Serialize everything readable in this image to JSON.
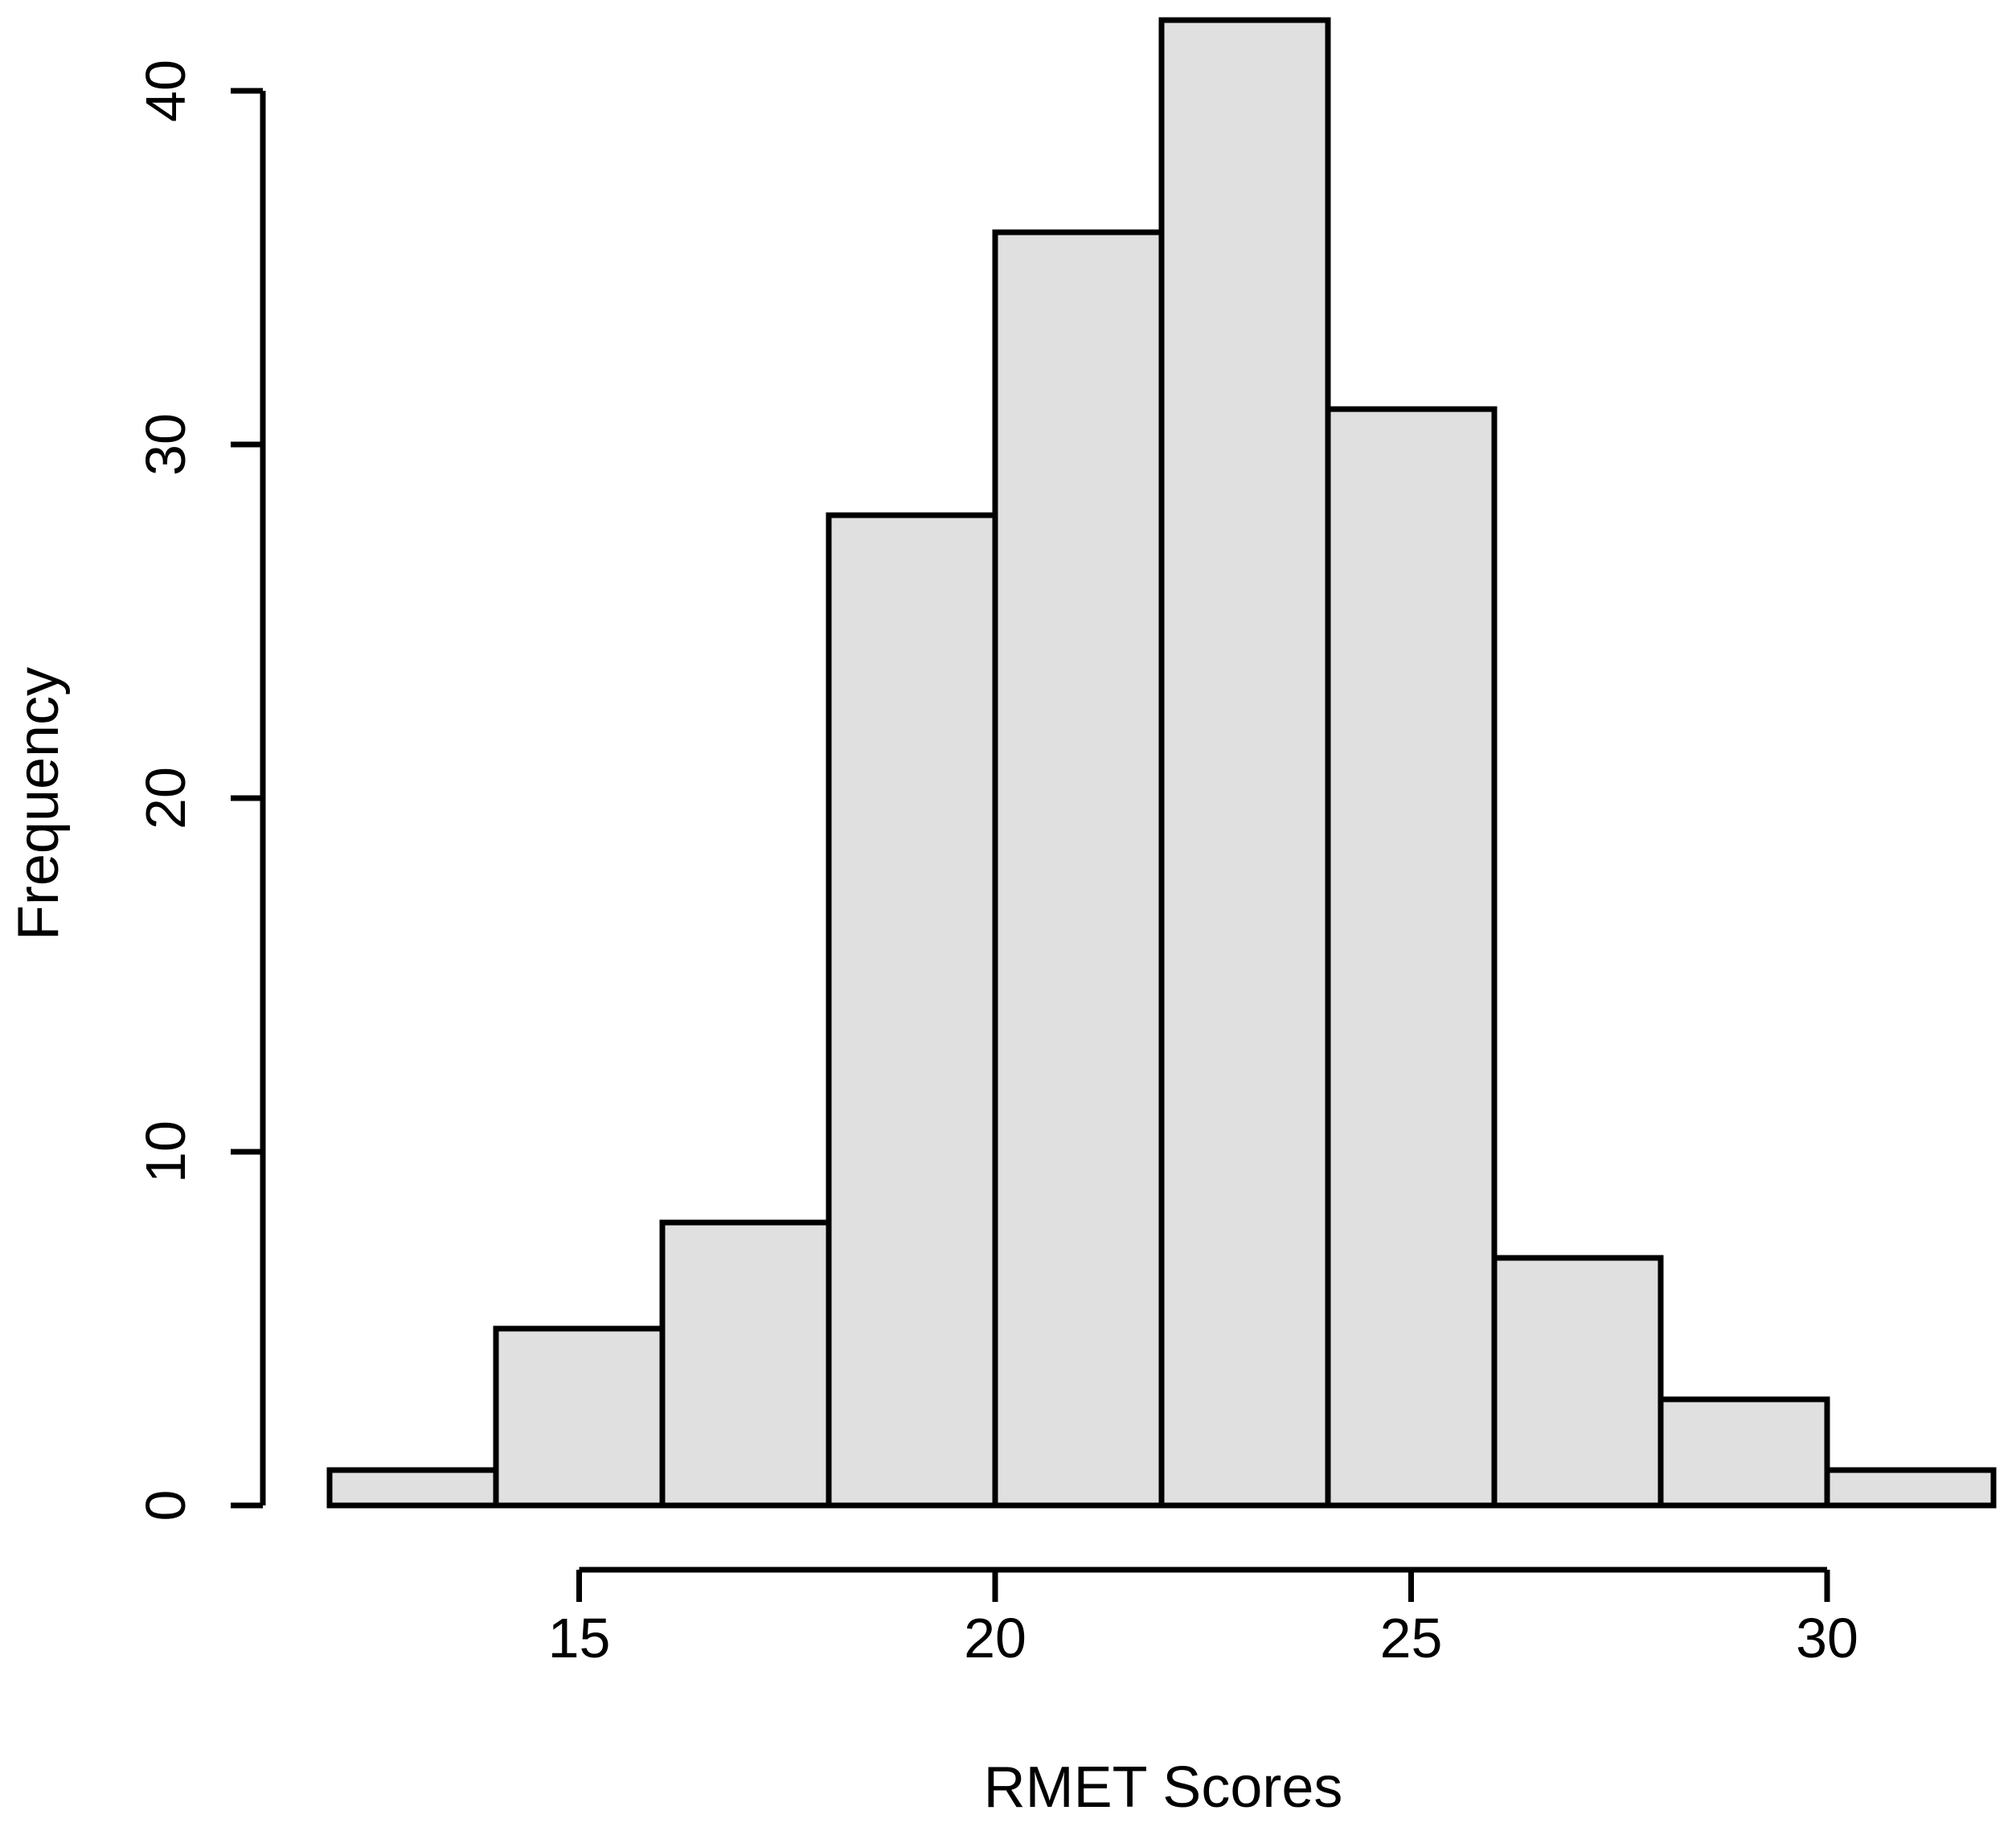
{
  "figure": {
    "background": "#ffffff"
  },
  "chart_data": {
    "type": "bar",
    "subtype": "histogram",
    "title": "",
    "xlabel": "RMET Scores",
    "ylabel": "Frequency",
    "bin_edges": [
      12,
      14,
      16,
      18,
      20,
      22,
      24,
      26,
      28,
      30,
      32
    ],
    "counts": [
      1,
      5,
      8,
      28,
      36,
      42,
      31,
      7,
      3,
      1
    ],
    "categories": [
      "12-14",
      "14-16",
      "16-18",
      "18-20",
      "20-22",
      "22-24",
      "24-26",
      "26-28",
      "28-30",
      "30-32"
    ],
    "x_ticks": [
      15,
      20,
      25,
      30
    ],
    "y_ticks": [
      0,
      10,
      20,
      30,
      40
    ],
    "xlim": [
      12,
      32
    ],
    "ylim": [
      0,
      42
    ],
    "grid": false,
    "legend": "none",
    "bar_fill": "#e0e0e0",
    "bar_stroke": "#000000",
    "axis_color": "#000000"
  }
}
